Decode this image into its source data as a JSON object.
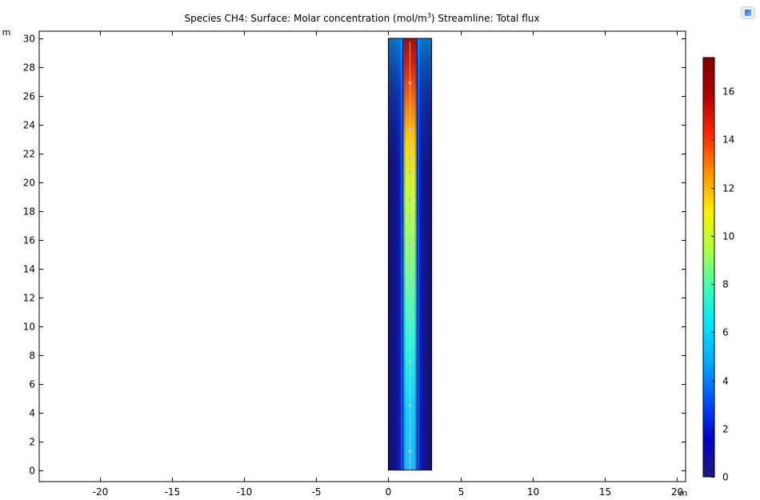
{
  "chart_data": {
    "type": "heatmap",
    "title": {
      "prefix": "Species CH4:  Surface: Molar concentration (mol/m",
      "sup": "3",
      "suffix": ")  Streamline: Total flux"
    },
    "xlabel": "m",
    "ylabel": "m",
    "xlim": [
      -24.2,
      20.6
    ],
    "ylim": [
      -0.8,
      30.5
    ],
    "xticks": [
      -20,
      -15,
      -10,
      -5,
      0,
      5,
      10,
      15,
      20
    ],
    "xtick_labels": [
      "-20",
      "-15",
      "-10",
      "-5",
      "0",
      "5",
      "10",
      "15",
      "20"
    ],
    "yticks": [
      0,
      2,
      4,
      6,
      8,
      10,
      12,
      14,
      16,
      18,
      20,
      22,
      24,
      26,
      28,
      30
    ],
    "ytick_labels": [
      "0",
      "2",
      "4",
      "6",
      "8",
      "10",
      "12",
      "14",
      "16",
      "18",
      "20",
      "22",
      "24",
      "26",
      "28",
      "30"
    ],
    "domain": {
      "x": [
        0,
        3
      ],
      "y": [
        0,
        30
      ]
    },
    "inner_channel": {
      "x": [
        1,
        2
      ]
    },
    "streamline": {
      "x": 1.5,
      "arrow_y": [
        1.2,
        4.4,
        7.4,
        9.6,
        10.6,
        12.8,
        15.6,
        17.6,
        18.7,
        20.6,
        21.6,
        22.4,
        23.6,
        26.8
      ]
    },
    "colorbar": {
      "range": [
        0,
        17.4
      ],
      "ticks": [
        0,
        2,
        4,
        6,
        8,
        10,
        12,
        14,
        16
      ],
      "tick_labels": [
        "0",
        "2",
        "4",
        "6",
        "8",
        "10",
        "12",
        "14",
        "16"
      ],
      "colormap": [
        "#1a1a7a",
        "#0000c8",
        "#0050ff",
        "#00a8ff",
        "#00e6ff",
        "#40ffb0",
        "#b0ff40",
        "#ffee00",
        "#ff9000",
        "#ff2800",
        "#b00000",
        "#800000"
      ]
    },
    "grid": false
  },
  "legend_icon": "window-icon"
}
